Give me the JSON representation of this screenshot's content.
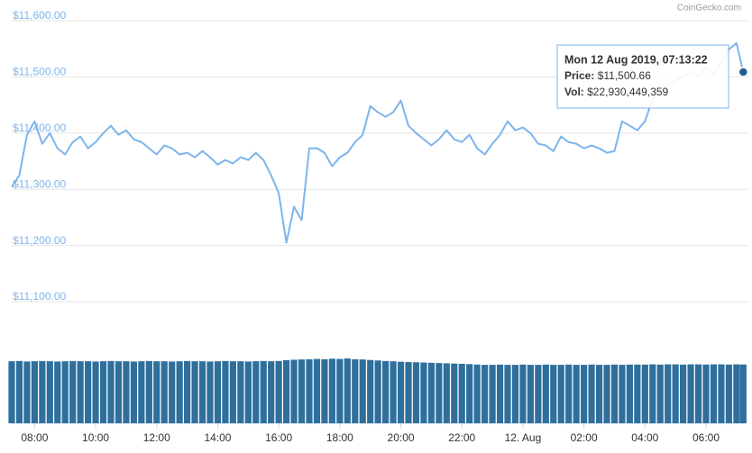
{
  "chart_data": {
    "type": "line",
    "watermark": "CoinGecko.com",
    "x": [
      7.25,
      7.5,
      7.75,
      8,
      8.25,
      8.5,
      8.75,
      9,
      9.25,
      9.5,
      9.75,
      10,
      10.25,
      10.5,
      10.75,
      11,
      11.25,
      11.5,
      11.75,
      12,
      12.25,
      12.5,
      12.75,
      13,
      13.25,
      13.5,
      13.75,
      14,
      14.25,
      14.5,
      14.75,
      15,
      15.25,
      15.5,
      15.75,
      16,
      16.25,
      16.5,
      16.75,
      17,
      17.25,
      17.5,
      17.75,
      18,
      18.25,
      18.5,
      18.75,
      19,
      19.25,
      19.5,
      19.75,
      20,
      20.25,
      20.5,
      20.75,
      21,
      21.25,
      21.5,
      21.75,
      22,
      22.25,
      22.5,
      22.75,
      23,
      23.25,
      23.5,
      23.75,
      24,
      24.25,
      24.5,
      24.75,
      25,
      25.25,
      25.5,
      25.75,
      26,
      26.25,
      26.5,
      26.75,
      27,
      27.25,
      27.5,
      27.75,
      28,
      28.25,
      28.5,
      28.75,
      29,
      29.25,
      29.5,
      29.75,
      30,
      30.25,
      30.5,
      30.75,
      31,
      31.22
    ],
    "series": [
      {
        "name": "Price",
        "color": "#7cb5ec",
        "values": [
          11296,
          11317,
          11389,
          11413,
          11373,
          11392,
          11365,
          11354,
          11376,
          11386,
          11365,
          11376,
          11392,
          11405,
          11389,
          11397,
          11381,
          11376,
          11365,
          11354,
          11370,
          11365,
          11354,
          11357,
          11349,
          11360,
          11349,
          11336,
          11344,
          11338,
          11349,
          11344,
          11357,
          11344,
          11317,
          11285,
          11197,
          11261,
          11237,
          11365,
          11365,
          11357,
          11333,
          11349,
          11357,
          11376,
          11389,
          11440,
          11429,
          11421,
          11429,
          11450,
          11405,
          11392,
          11381,
          11370,
          11381,
          11397,
          11381,
          11376,
          11389,
          11365,
          11354,
          11373,
          11389,
          11413,
          11397,
          11402,
          11392,
          11373,
          11370,
          11360,
          11386,
          11376,
          11373,
          11365,
          11370,
          11365,
          11357,
          11360,
          11413,
          11405,
          11397,
          11413,
          11453,
          11469,
          11477,
          11485,
          11493,
          11501,
          11493,
          11509,
          11498,
          11517,
          11541,
          11552,
          11500.66
        ]
      },
      {
        "name": "Vol",
        "color": "#2f6f9c",
        "values": [
          24200000000,
          24300000000,
          24100000000,
          24200000000,
          24300000000,
          24200000000,
          24100000000,
          24200000000,
          24300000000,
          24200000000,
          24200000000,
          24100000000,
          24200000000,
          24300000000,
          24200000000,
          24200000000,
          24100000000,
          24200000000,
          24300000000,
          24200000000,
          24200000000,
          24100000000,
          24200000000,
          24300000000,
          24200000000,
          24200000000,
          24100000000,
          24200000000,
          24300000000,
          24200000000,
          24200000000,
          24100000000,
          24200000000,
          24300000000,
          24200000000,
          24300000000,
          24600000000,
          24800000000,
          24900000000,
          25000000000,
          25100000000,
          25000000000,
          25200000000,
          25100000000,
          25300000000,
          25000000000,
          24900000000,
          24700000000,
          24500000000,
          24300000000,
          24200000000,
          24000000000,
          23900000000,
          23800000000,
          23700000000,
          23600000000,
          23500000000,
          23400000000,
          23300000000,
          23200000000,
          23100000000,
          22900000000,
          22800000000,
          22800000000,
          22900000000,
          22800000000,
          22800000000,
          22900000000,
          22800000000,
          22800000000,
          22900000000,
          22800000000,
          22800000000,
          22900000000,
          22800000000,
          22800000000,
          22900000000,
          22800000000,
          22800000000,
          22900000000,
          22800000000,
          22900000000,
          22900000000,
          22900000000,
          23000000000,
          22900000000,
          23000000000,
          23000000000,
          22900000000,
          23000000000,
          23000000000,
          22900000000,
          23000000000,
          23000000000,
          22900000000,
          23000000000,
          22930449359
        ]
      }
    ],
    "xlim": [
      7.25,
      31.3
    ],
    "xticks": [
      {
        "value": 8,
        "label": "08:00"
      },
      {
        "value": 10,
        "label": "10:00"
      },
      {
        "value": 12,
        "label": "12:00"
      },
      {
        "value": 14,
        "label": "14:00"
      },
      {
        "value": 16,
        "label": "16:00"
      },
      {
        "value": 18,
        "label": "18:00"
      },
      {
        "value": 20,
        "label": "20:00"
      },
      {
        "value": 22,
        "label": "22:00"
      },
      {
        "value": 24,
        "label": "12. Aug"
      },
      {
        "value": 26,
        "label": "02:00"
      },
      {
        "value": 28,
        "label": "04:00"
      },
      {
        "value": 30,
        "label": "06:00"
      }
    ],
    "ylim": [
      11100,
      11600
    ],
    "yticks": [
      {
        "value": 11100,
        "label": "$11,100.00"
      },
      {
        "value": 11200,
        "label": "$11,200.00"
      },
      {
        "value": 11300,
        "label": "$11,300.00"
      },
      {
        "value": 11400,
        "label": "$11,400.00"
      },
      {
        "value": 11500,
        "label": "$11,500.00"
      },
      {
        "value": 11600,
        "label": "$11,600.00"
      }
    ],
    "grid": true,
    "tooltip": {
      "date": "Mon 12 Aug 2019, 07:13:22",
      "price_label": "Price:",
      "price": "$11,500.66",
      "vol_label": "Vol:",
      "vol": "$22,930,449,359"
    }
  }
}
